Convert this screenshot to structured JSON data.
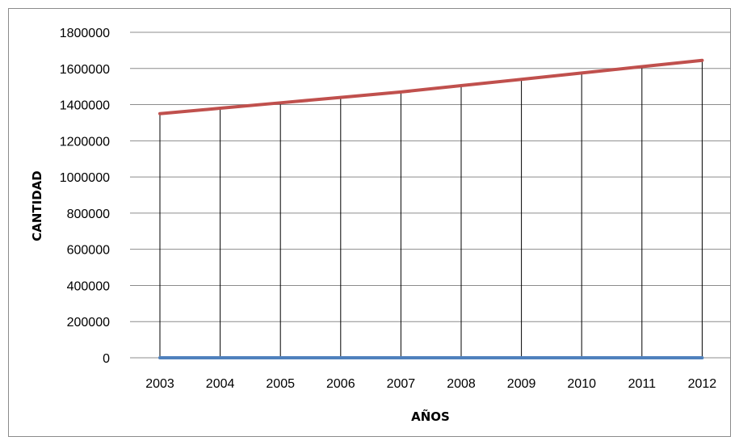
{
  "chart_data": {
    "type": "line",
    "x": [
      "2003",
      "2004",
      "2005",
      "2006",
      "2007",
      "2008",
      "2009",
      "2010",
      "2011",
      "2012"
    ],
    "series": [
      {
        "color": "#c0504d",
        "values": [
          1350000,
          1380000,
          1410000,
          1440000,
          1470000,
          1505000,
          1540000,
          1575000,
          1610000,
          1645000
        ]
      },
      {
        "color": "#4f81bd",
        "values": [
          0,
          0,
          0,
          0,
          0,
          0,
          0,
          0,
          0,
          0
        ]
      }
    ],
    "xlabel": "AÑOS",
    "ylabel": "CANTIDAD",
    "ylim": [
      0,
      1800000
    ],
    "yticks": [
      "0",
      "200000",
      "400000",
      "600000",
      "800000",
      "1000000",
      "1200000",
      "1400000",
      "1600000",
      "1800000"
    ],
    "grid": true,
    "drop_lines": true
  }
}
